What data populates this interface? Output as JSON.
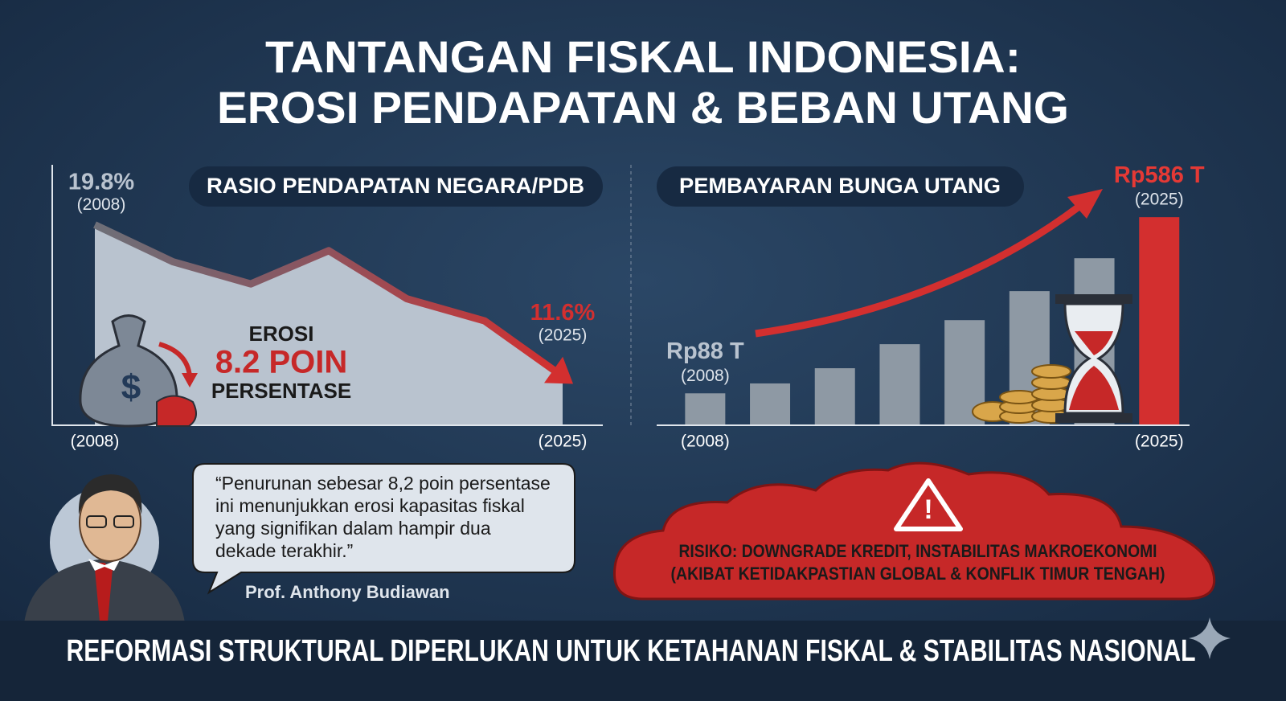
{
  "header": {
    "title": [
      "TANTANGAN FISKAL INDONESIA:",
      "EROSI PENDAPATAN & BEBAN UTANG"
    ]
  },
  "chart_data": [
    {
      "type": "area",
      "title": "RASIO PENDAPATAN NEGARA/PDB",
      "categories": [
        "(2008)",
        null,
        null,
        null,
        null,
        null,
        "(2025)"
      ],
      "values": [
        19.8,
        17.8,
        16.6,
        18.4,
        15.8,
        14.6,
        11.6
      ],
      "value_labels": [
        "19.8%",
        null,
        null,
        null,
        null,
        null,
        "11.6%"
      ],
      "ylim": [
        9,
        23
      ],
      "color": "#d32f2f",
      "annotation": [
        "EROSI",
        "8.2 POIN",
        "PERSENTASE"
      ]
    },
    {
      "type": "bar",
      "title": "PEMBAYARAN BUNGA UTANG",
      "categories": [
        "(2008)",
        null,
        null,
        null,
        null,
        null,
        null,
        "(2025)"
      ],
      "values": [
        88,
        116,
        159,
        227,
        295,
        377,
        470,
        586
      ],
      "value_labels": [
        "Rp88 T",
        null,
        null,
        null,
        null,
        null,
        null,
        "Rp586 T"
      ],
      "colors": [
        "#8e99a4",
        "#8e99a4",
        "#8e99a4",
        "#8e99a4",
        "#8e99a4",
        "#8e99a4",
        "#8e99a4",
        "#d32f2f"
      ],
      "ylim": [
        0,
        600
      ]
    }
  ],
  "quote": {
    "lines": [
      "“Penurunan sebesar 8,2 poin persentase",
      "ini menunjukkan erosi kapasitas fiskal",
      "yang signifikan dalam hampir dua",
      "dekade terakhir.”"
    ],
    "author": "Prof. Anthony Budiawan"
  },
  "risk": [
    "RISIKO: DOWNGRADE KREDIT, INSTABILITAS MAKROEKONOMI",
    "(AKIBAT KETIDAKPASTIAN GLOBAL & KONFLIK TIMUR TENGAH)"
  ],
  "footer": "REFORMASI STRUKTURAL DIPERLUKAN UNTUK KETAHANAN FISKAL & STABILITAS NASIONAL"
}
